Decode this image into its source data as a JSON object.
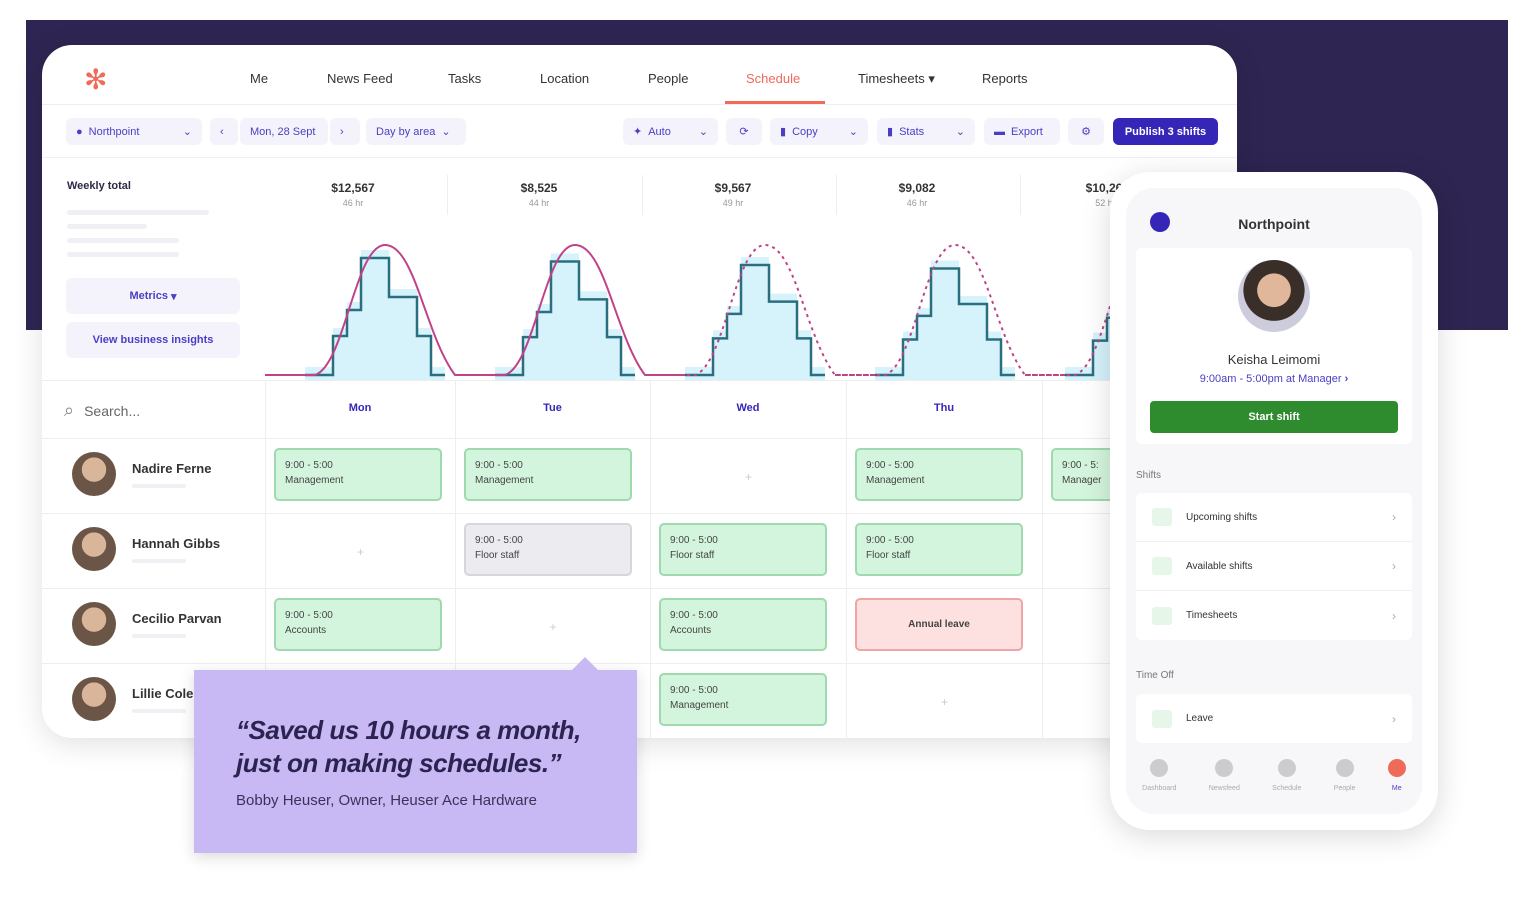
{
  "nav": {
    "items": [
      "Me",
      "News Feed",
      "Tasks",
      "Location",
      "People",
      "Schedule",
      "Timesheets",
      "Reports"
    ],
    "active": "Schedule"
  },
  "toolbar": {
    "location": "Northpoint",
    "date": "Mon, 28 Sept",
    "view": "Day by area",
    "auto": "Auto",
    "copy": "Copy",
    "stats": "Stats",
    "export": "Export",
    "publish": "Publish 3 shifts"
  },
  "summary": {
    "label": "Weekly total",
    "metrics": "Metrics",
    "insights": "View business insights",
    "days": [
      {
        "cost": "$12,567",
        "hours": "46 hr"
      },
      {
        "cost": "$8,525",
        "hours": "44 hr"
      },
      {
        "cost": "$9,567",
        "hours": "49 hr"
      },
      {
        "cost": "$9,082",
        "hours": "46 hr"
      },
      {
        "cost": "$10,26",
        "hours": "52 h"
      }
    ]
  },
  "colors": {
    "accent": "#3526b8",
    "brand": "#f06a5a",
    "shift": "#d4f5dd",
    "leave": "#fde0e0",
    "band": "#2e2552"
  },
  "grid": {
    "search_placeholder": "Search...",
    "columns": [
      "Mon",
      "Tue",
      "Wed",
      "Thu"
    ],
    "people": [
      "Nadire Ferne",
      "Hannah Gibbs",
      "Cecilio Parvan",
      "Lillie Cole"
    ],
    "shifts": [
      {
        "r": 0,
        "c": 0,
        "time": "9:00 - 5:00",
        "role": "Management"
      },
      {
        "r": 0,
        "c": 1,
        "time": "9:00 - 5:00",
        "role": "Management"
      },
      {
        "r": 0,
        "c": 3,
        "time": "9:00 - 5:00",
        "role": "Management"
      },
      {
        "r": 0,
        "c": 4,
        "time": "9:00 - 5:",
        "role": "Manager"
      },
      {
        "r": 1,
        "c": 1,
        "time": "9:00 - 5:00",
        "role": "Floor staff",
        "kind": "grey"
      },
      {
        "r": 1,
        "c": 2,
        "time": "9:00 - 5:00",
        "role": "Floor staff"
      },
      {
        "r": 1,
        "c": 3,
        "time": "9:00 - 5:00",
        "role": "Floor staff"
      },
      {
        "r": 2,
        "c": 0,
        "time": "9:00 - 5:00",
        "role": "Accounts"
      },
      {
        "r": 2,
        "c": 2,
        "time": "9:00 - 5:00",
        "role": "Accounts"
      },
      {
        "r": 2,
        "c": 3,
        "time": "Annual leave",
        "role": "",
        "kind": "leave"
      },
      {
        "r": 3,
        "c": 2,
        "time": "9:00 - 5:00",
        "role": "Management"
      }
    ]
  },
  "quote": {
    "text": "“Saved us 10 hours a month, just on making schedules.”",
    "author": "Bobby Heuser, Owner, Heuser Ace Hardware"
  },
  "phone": {
    "title": "Northpoint",
    "name": "Keisha Leimomi",
    "shift": "9:00am - 5:00pm at Manager",
    "start": "Start shift",
    "shifts_label": "Shifts",
    "shift_items": [
      "Upcoming shifts",
      "Available shifts",
      "Timesheets"
    ],
    "timeoff_label": "Time Off",
    "timeoff_items": [
      "Leave"
    ],
    "tabs": [
      "Dashboard",
      "Newsfeed",
      "Schedule",
      "People",
      "Me"
    ],
    "active_tab": "Me"
  }
}
